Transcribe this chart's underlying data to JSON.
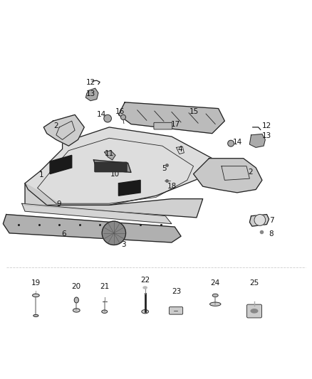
{
  "background_color": "#ffffff",
  "figure_width": 4.38,
  "figure_height": 5.33,
  "dpi": 100,
  "label_fontsize": 7.5,
  "line_color": "#222222"
}
